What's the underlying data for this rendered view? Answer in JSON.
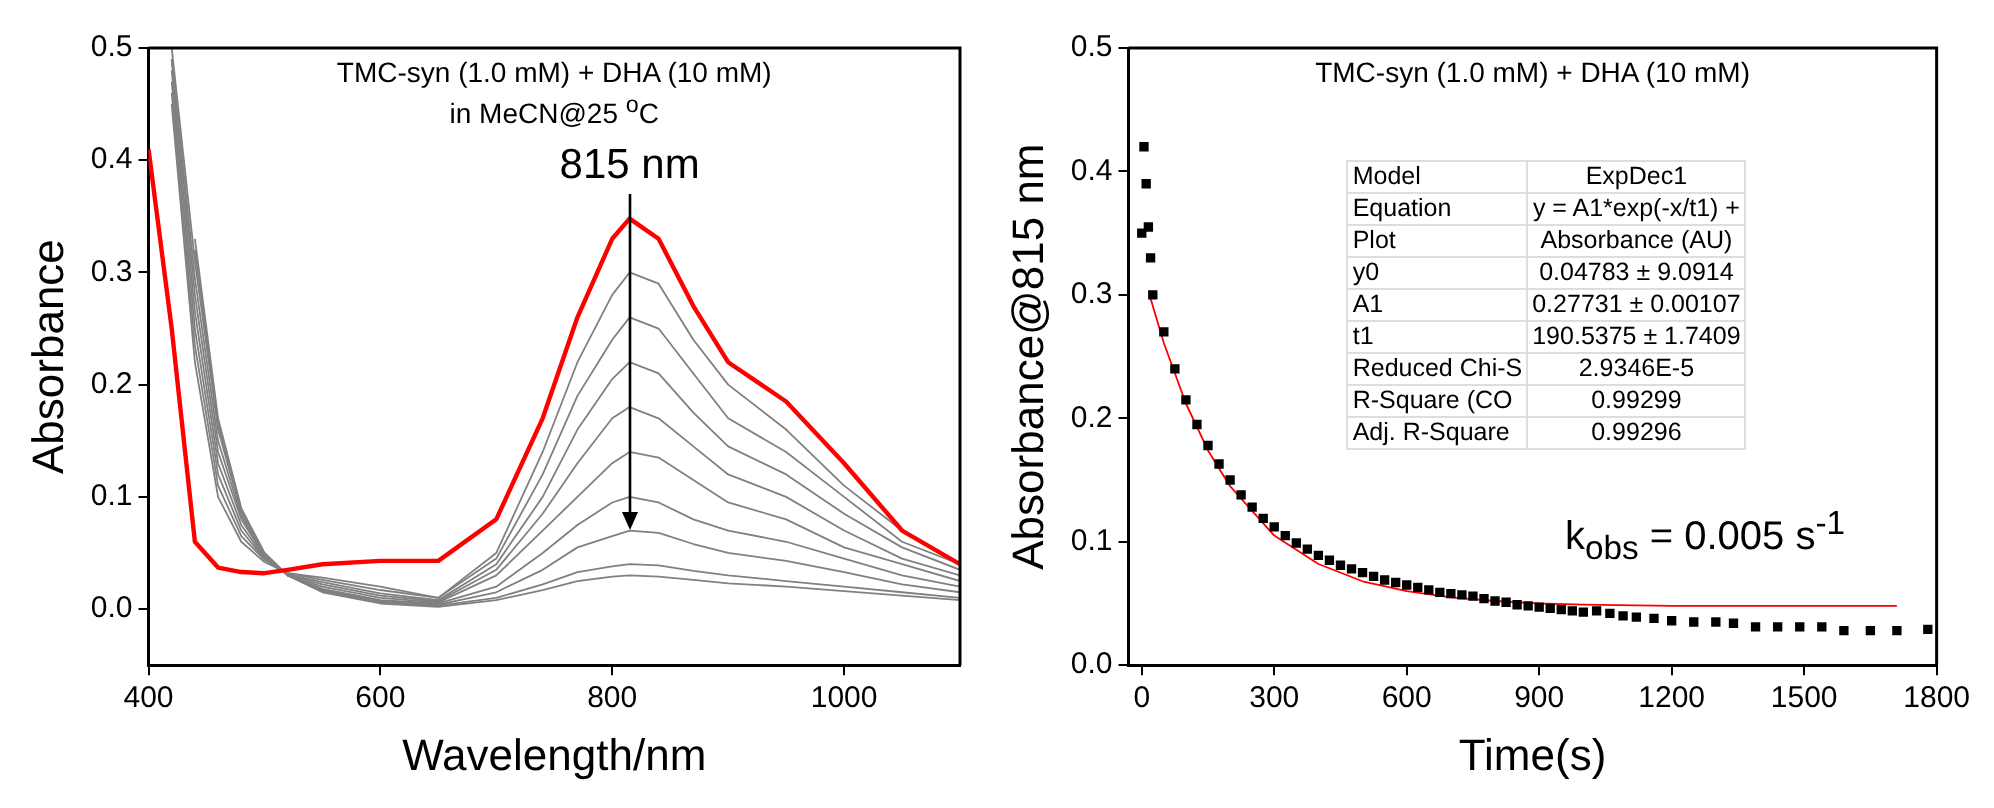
{
  "chart_data": [
    {
      "type": "line",
      "title": "TMC-syn (1.0 mM) + DHA (10 mM)",
      "subtitle": "in MeCN@25 $^{o}$C",
      "xlabel": "Wavelength/nm",
      "ylabel": "Absorbance",
      "x": [
        400,
        420,
        440,
        460,
        480,
        500,
        520,
        550,
        600,
        650,
        700,
        740,
        770,
        800,
        815,
        840,
        870,
        900,
        950,
        1000,
        1050,
        1100
      ],
      "series": [
        {
          "color": "#ff0000",
          "values": [
            0.41,
            0.25,
            0.06,
            0.037,
            0.033,
            0.032,
            0.035,
            0.04,
            0.043,
            0.043,
            0.08,
            0.17,
            0.26,
            0.33,
            0.348,
            0.33,
            0.27,
            0.22,
            0.185,
            0.13,
            0.07,
            0.04
          ]
        },
        {
          "color": "#808080",
          "values": [
            null,
            0.45,
            0.22,
            0.1,
            0.06,
            0.042,
            0.032,
            0.028,
            0.02,
            0.01,
            0.05,
            0.14,
            0.22,
            0.28,
            0.3,
            0.29,
            0.24,
            0.2,
            0.16,
            0.11,
            0.07,
            0.04
          ]
        },
        {
          "color": "#808080",
          "values": [
            null,
            0.46,
            0.235,
            0.11,
            0.065,
            0.044,
            0.032,
            0.026,
            0.017,
            0.01,
            0.045,
            0.12,
            0.19,
            0.24,
            0.26,
            0.25,
            0.21,
            0.17,
            0.14,
            0.1,
            0.06,
            0.04
          ]
        },
        {
          "color": "#808080",
          "values": [
            null,
            0.47,
            0.25,
            0.12,
            0.07,
            0.045,
            0.031,
            0.024,
            0.014,
            0.008,
            0.04,
            0.1,
            0.16,
            0.205,
            0.22,
            0.21,
            0.175,
            0.145,
            0.12,
            0.085,
            0.055,
            0.035
          ]
        },
        {
          "color": "#808080",
          "values": [
            null,
            0.48,
            0.265,
            0.13,
            0.075,
            0.046,
            0.031,
            0.022,
            0.012,
            0.007,
            0.035,
            0.085,
            0.13,
            0.17,
            0.18,
            0.17,
            0.145,
            0.12,
            0.1,
            0.07,
            0.045,
            0.03
          ]
        },
        {
          "color": "#808080",
          "values": [
            null,
            0.49,
            0.28,
            0.14,
            0.08,
            0.047,
            0.03,
            0.02,
            0.01,
            0.006,
            0.03,
            0.07,
            0.1,
            0.13,
            0.14,
            0.135,
            0.115,
            0.095,
            0.08,
            0.055,
            0.04,
            0.025
          ]
        },
        {
          "color": "#808080",
          "values": [
            null,
            0.49,
            0.295,
            0.15,
            0.083,
            0.048,
            0.03,
            0.018,
            0.008,
            0.005,
            0.02,
            0.05,
            0.075,
            0.095,
            0.1,
            0.095,
            0.08,
            0.07,
            0.06,
            0.045,
            0.03,
            0.02
          ]
        },
        {
          "color": "#808080",
          "values": [
            null,
            0.5,
            0.31,
            0.16,
            0.086,
            0.049,
            0.03,
            0.017,
            0.007,
            0.004,
            0.015,
            0.035,
            0.055,
            0.065,
            0.07,
            0.068,
            0.058,
            0.05,
            0.043,
            0.033,
            0.022,
            0.015
          ]
        },
        {
          "color": "#808080",
          "values": [
            null,
            null,
            0.32,
            0.165,
            0.088,
            0.05,
            0.03,
            0.016,
            0.006,
            0.003,
            0.01,
            0.022,
            0.033,
            0.038,
            0.04,
            0.039,
            0.034,
            0.03,
            0.025,
            0.02,
            0.015,
            0.01
          ]
        },
        {
          "color": "#808080",
          "values": [
            null,
            null,
            0.33,
            0.17,
            0.09,
            0.05,
            0.03,
            0.015,
            0.005,
            0.002,
            0.008,
            0.017,
            0.025,
            0.029,
            0.03,
            0.029,
            0.026,
            0.023,
            0.02,
            0.016,
            0.012,
            0.008
          ]
        }
      ],
      "xlim": [
        400,
        1100
      ],
      "xticks": [
        400,
        600,
        800,
        1000
      ],
      "ylim": [
        -0.05,
        0.5
      ],
      "yticks": [
        {
          "value": 0,
          "label": "0.0"
        },
        0.1,
        0.2,
        0.3,
        0.4,
        0.5
      ],
      "annotations": [
        "815 nm"
      ],
      "legend": false
    },
    {
      "type": "scatter",
      "title": "TMC-syn (1.0 mM) + DHA (10 mM)",
      "xlabel": "Time(s)",
      "ylabel": "Absorbance@815 nm",
      "series": [
        {
          "color": "#000000",
          "marker": "square",
          "x": [
            0,
            5,
            10,
            15,
            20,
            25,
            50,
            75,
            100,
            125,
            150,
            175,
            200,
            225,
            250,
            275,
            300,
            325,
            350,
            375,
            400,
            425,
            450,
            475,
            500,
            525,
            550,
            575,
            600,
            625,
            650,
            675,
            700,
            725,
            750,
            775,
            800,
            825,
            850,
            875,
            900,
            925,
            950,
            975,
            1000,
            1030,
            1060,
            1090,
            1120,
            1160,
            1200,
            1250,
            1300,
            1340,
            1390,
            1440,
            1490,
            1540,
            1590,
            1650,
            1710,
            1780
          ],
          "values": [
            0.35,
            0.42,
            0.39,
            0.355,
            0.33,
            0.3,
            0.27,
            0.24,
            0.215,
            0.195,
            0.178,
            0.163,
            0.15,
            0.138,
            0.128,
            0.119,
            0.112,
            0.105,
            0.099,
            0.094,
            0.089,
            0.085,
            0.081,
            0.078,
            0.075,
            0.072,
            0.069,
            0.067,
            0.065,
            0.063,
            0.061,
            0.059,
            0.058,
            0.057,
            0.056,
            0.054,
            0.052,
            0.051,
            0.049,
            0.048,
            0.047,
            0.046,
            0.045,
            0.044,
            0.043,
            0.044,
            0.042,
            0.04,
            0.039,
            0.038,
            0.036,
            0.035,
            0.035,
            0.034,
            0.031,
            0.031,
            0.031,
            0.031,
            0.028,
            0.028,
            0.028,
            0.029
          ]
        },
        {
          "type": "line",
          "color": "#ff0000",
          "x": [
            20,
            50,
            100,
            150,
            200,
            300,
            400,
            500,
            600,
            700,
            800,
            900,
            1000,
            1200,
            1400,
            1710
          ],
          "values": [
            0.297,
            0.261,
            0.212,
            0.174,
            0.145,
            0.105,
            0.082,
            0.068,
            0.06,
            0.055,
            0.052,
            0.05,
            0.049,
            0.048,
            0.048,
            0.048
          ]
        }
      ],
      "xlim": [
        -30,
        1800
      ],
      "xticks": [
        0,
        300,
        600,
        900,
        1200,
        1500,
        1800
      ],
      "ylim": [
        0,
        0.5
      ],
      "yticks": [
        {
          "value": 0,
          "label": "0.0"
        },
        0.1,
        0.2,
        0.3,
        0.4,
        0.5
      ],
      "annotations": [
        "Model",
        "ExpDec1",
        "Equation",
        "y = A1*exp(-x/t1) +",
        "Plot",
        "Absorbance (AU)",
        "y0",
        "0.04783 ± 9.0914",
        "A1",
        "0.27731 ± 0.00107",
        "t1",
        "190.5375 ± 1.7409",
        "Reduced Chi-S",
        "2.9346E-5",
        "R-Square (CO",
        "0.99299",
        "Adj. R-Square",
        "0.99296",
        "k$_{obs}$ = 0.005 s$^{-1}$"
      ],
      "legend": false
    }
  ]
}
